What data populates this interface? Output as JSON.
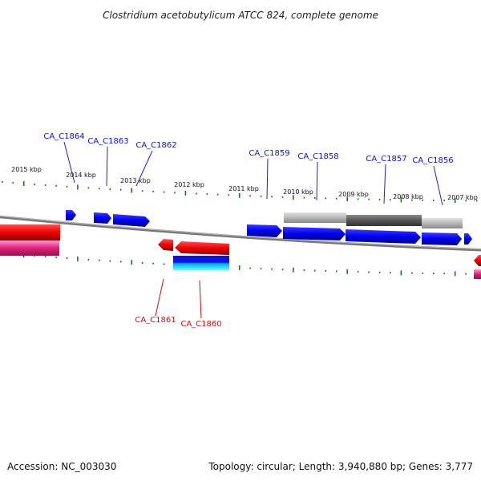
{
  "title": "Clostridium acetobutylicum ATCC 824, complete genome",
  "footer": {
    "accession": "Accession: NC_003030",
    "summary": "Topology: circular; Length: 3,940,880 bp; Genes: 3,777"
  },
  "ticks": [
    {
      "label": "2015 kbp",
      "kbp": 2015
    },
    {
      "label": "2014 kbp",
      "kbp": 2014
    },
    {
      "label": "2013 kbp",
      "kbp": 2013
    },
    {
      "label": "2012 kbp",
      "kbp": 2012
    },
    {
      "label": "2011 kbp",
      "kbp": 2011
    },
    {
      "label": "2010 kbp",
      "kbp": 2010
    },
    {
      "label": "2009 kbp",
      "kbp": 2009
    },
    {
      "label": "2008 kbp",
      "kbp": 2008
    },
    {
      "label": "2007 kbp",
      "kbp": 2007
    }
  ],
  "genes_top": [
    {
      "label": "CA_C1864"
    },
    {
      "label": "CA_C1863"
    },
    {
      "label": "CA_C1862"
    },
    {
      "label": "CA_C1859"
    },
    {
      "label": "CA_C1858"
    },
    {
      "label": "CA_C1857"
    },
    {
      "label": "CA_C1856"
    }
  ],
  "genes_bottom": [
    {
      "label": "CA_C1861"
    },
    {
      "label": "CA_C1860"
    }
  ],
  "colors": {
    "forward_gene": "#0000ee",
    "reverse_gene": "#ee0000",
    "tick": "#1a7a1a",
    "backbone": "#888888",
    "gray_feature": "#999999",
    "dark_feature": "#555555",
    "pink_feature": "#e0207a",
    "cyan_feature": "#00c8d8"
  }
}
